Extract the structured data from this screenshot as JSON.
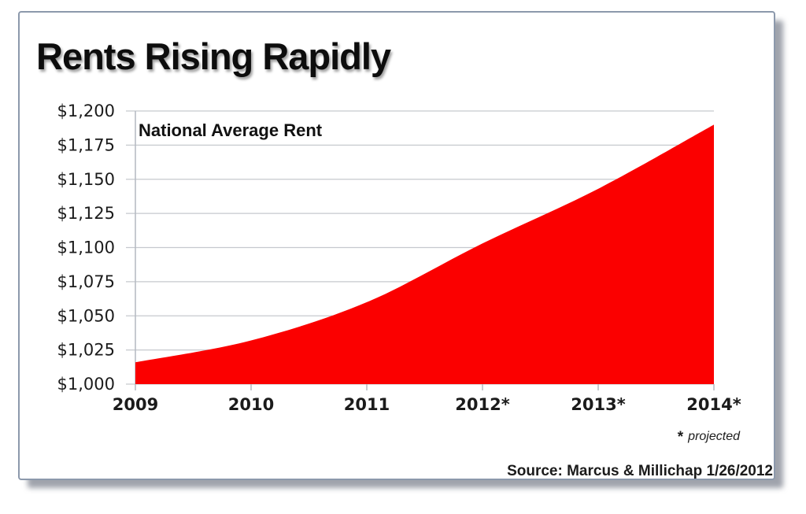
{
  "page": {
    "title": "Rents Rising Rapidly"
  },
  "chart_data": {
    "type": "area",
    "title": "Rents Rising Rapidly",
    "series_label": "National Average Rent",
    "categories": [
      "2009",
      "2010",
      "2011",
      "2012*",
      "2013*",
      "2014*"
    ],
    "values": [
      1016,
      1032,
      1060,
      1103,
      1143,
      1190
    ],
    "ylim": [
      1000,
      1200
    ],
    "ytick_step": 25,
    "ytick_labels": [
      "$1,000",
      "$1,025",
      "$1,050",
      "$1,075",
      "$1,100",
      "$1,125",
      "$1,150",
      "$1,175",
      "$1,200"
    ],
    "xlabel": "",
    "ylabel": "",
    "grid": true,
    "legend": false,
    "area_color": "#fb0000",
    "gridline_color": "#c6c9ce",
    "axis_color": "#b4b9c1",
    "text_color": "#1b1b1b"
  },
  "footnote": {
    "symbol": "*",
    "label": "projected"
  },
  "source": {
    "label": "Source: Marcus & Millichap 1/26/2012"
  }
}
